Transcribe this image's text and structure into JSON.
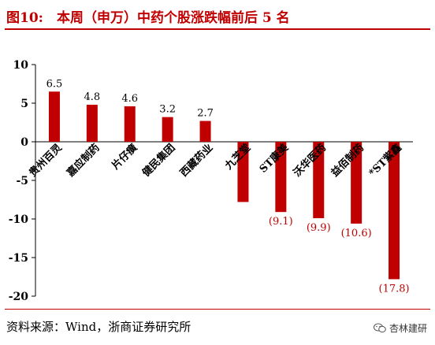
{
  "header": {
    "figure_label": "图10:",
    "title": "本周（申万）中药个股涨跌幅前后 5 名"
  },
  "chart_data": {
    "type": "bar",
    "title": "本周（申万）中药个股涨跌幅前后 5 名",
    "categories": [
      "贵州百灵",
      "嘉应制药",
      "片仔癀",
      "健民集团",
      "西藏药业",
      "九芝堂",
      "ST康美",
      "沃华医药",
      "益佰制药",
      "*ST紫鑫"
    ],
    "values": [
      6.5,
      4.8,
      4.6,
      3.2,
      2.7,
      -7.8,
      -9.1,
      -9.9,
      -10.6,
      -17.8
    ],
    "data_labels": [
      "6.5",
      "4.8",
      "4.6",
      "3.2",
      "2.7",
      "",
      "(9.1)",
      "(9.9)",
      "(10.6)",
      "(17.8)"
    ],
    "yticks": [
      "10",
      "5",
      "0",
      "-5",
      "-10",
      "-15",
      "-20"
    ],
    "ylim": [
      -20,
      10
    ],
    "grid": false,
    "bar_color": "#c00000",
    "xlabel": "",
    "ylabel": ""
  },
  "footer": {
    "source": "资料来源：Wind，浙商证券研究所",
    "watermark": "杏林建研",
    "watermark_icon": "wechat-icon"
  }
}
